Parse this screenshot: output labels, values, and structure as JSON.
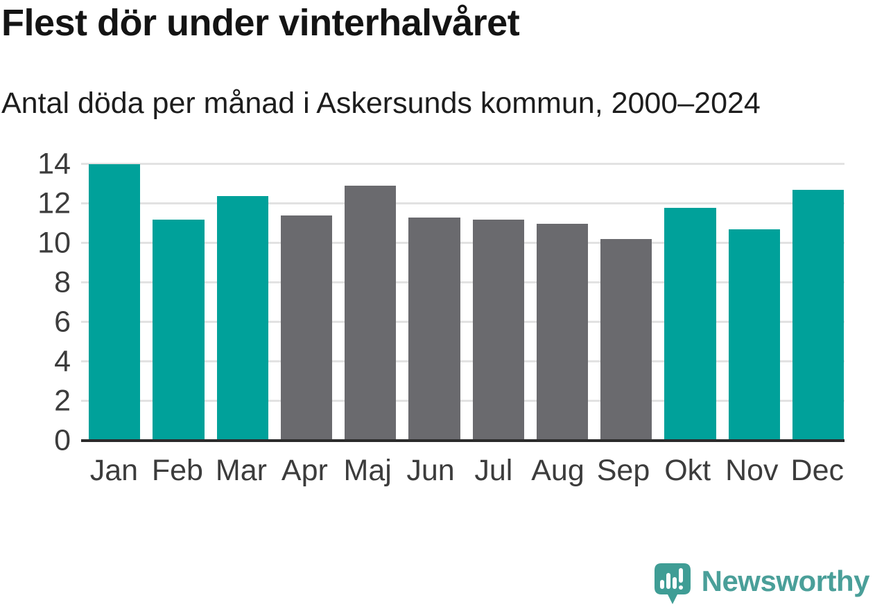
{
  "chart_data": {
    "type": "bar",
    "title": "Flest dör under vinterhalvåret",
    "subtitle": "Antal döda per månad i Askersunds kommun, 2000–2024",
    "categories": [
      "Jan",
      "Feb",
      "Mar",
      "Apr",
      "Maj",
      "Jun",
      "Jul",
      "Aug",
      "Sep",
      "Okt",
      "Nov",
      "Dec"
    ],
    "values": [
      14.0,
      11.2,
      12.4,
      11.4,
      12.9,
      11.3,
      11.2,
      11.0,
      10.2,
      11.8,
      10.7,
      12.7
    ],
    "highlighted_categories": [
      "Jan",
      "Feb",
      "Mar",
      "Okt",
      "Nov",
      "Dec"
    ],
    "highlight_color": "#00a19a",
    "default_color": "#6a6a6e",
    "xlabel": "",
    "ylabel": "",
    "ylim": [
      0,
      14
    ],
    "yticks": [
      0,
      2,
      4,
      6,
      8,
      10,
      12,
      14
    ],
    "grid": "horizontal",
    "gridline_color": "#e2e2e2",
    "baseline_color": "#2b2b2b",
    "legend": "none"
  },
  "footer": {
    "brand": "Newsworthy",
    "brand_color": "#4a9f99",
    "logo_color": "#3f9d95",
    "logo_icon": "newsworthy-speech-bubble-bar-chart-icon"
  }
}
